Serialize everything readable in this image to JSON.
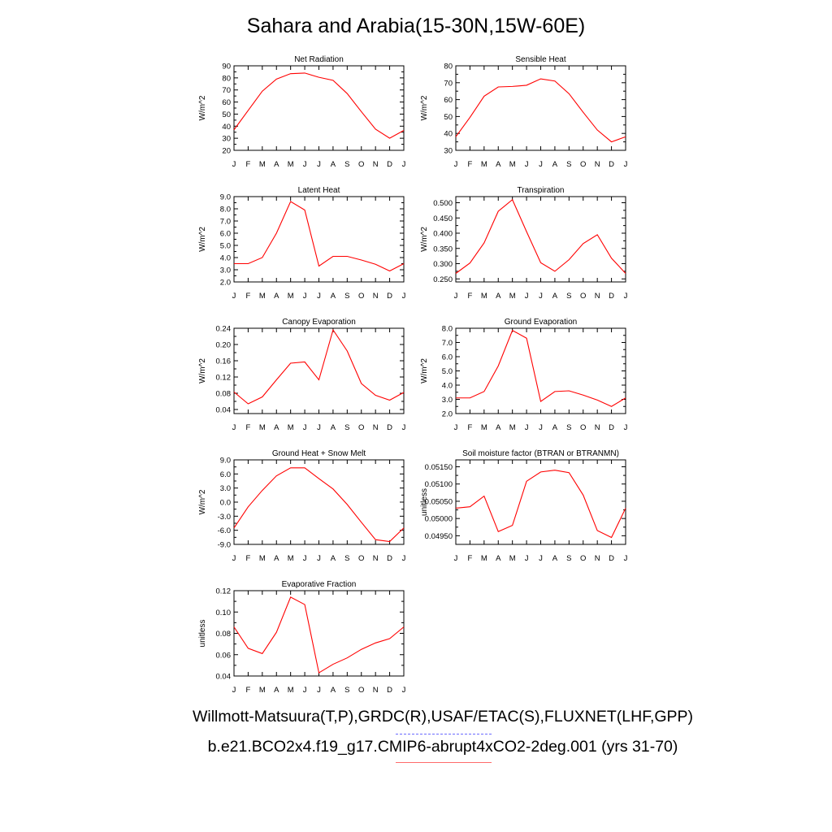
{
  "title": "Sahara and Arabia(15-30N,15W-60E)",
  "months": [
    "J",
    "F",
    "M",
    "A",
    "M",
    "J",
    "J",
    "A",
    "S",
    "O",
    "N",
    "D",
    "J"
  ],
  "legend": {
    "line1": "Willmott-Matsuura(T,P),GRDC(R),USAF/ETAC(S),FLUXNET(LHF,GPP)",
    "line1_color": "#6b6bff",
    "line2": "b.e21.BCO2x4.f19_g17.CMIP6-abrupt4xCO2-2deg.001 (yrs 31-70)",
    "line2_color": "#ff6b6b"
  },
  "chart_data": [
    {
      "type": "line",
      "title": "Net Radiation",
      "ylabel": "W/m^2",
      "ylim": [
        20,
        90
      ],
      "yticks": [
        "20",
        "30",
        "40",
        "50",
        "60",
        "70",
        "80",
        "90"
      ],
      "series": [
        {
          "color": "#ff0000",
          "values": [
            37,
            53,
            69,
            79,
            83.5,
            84,
            80.5,
            78,
            67,
            52,
            37.5,
            30,
            36.5
          ]
        }
      ]
    },
    {
      "type": "line",
      "title": "Sensible Heat",
      "ylabel": "W/m^2",
      "ylim": [
        30,
        80
      ],
      "yticks": [
        "30",
        "40",
        "50",
        "60",
        "70",
        "80"
      ],
      "series": [
        {
          "color": "#ff0000",
          "values": [
            38,
            49.5,
            62,
            67.5,
            67.8,
            68.5,
            72.3,
            71,
            63.5,
            52.5,
            42,
            35,
            38
          ]
        }
      ]
    },
    {
      "type": "line",
      "title": "Latent Heat",
      "ylabel": "W/m^2",
      "ylim": [
        2.0,
        9.0
      ],
      "yticks": [
        "2.0",
        "3.0",
        "4.0",
        "5.0",
        "6.0",
        "7.0",
        "8.0",
        "9.0"
      ],
      "series": [
        {
          "color": "#ff0000",
          "values": [
            3.5,
            3.5,
            4.0,
            6.0,
            8.6,
            7.9,
            3.3,
            4.1,
            4.1,
            3.8,
            3.45,
            2.9,
            3.5
          ]
        }
      ]
    },
    {
      "type": "line",
      "title": "Transpiration",
      "ylabel": "W/m^2",
      "ylim": [
        0.24,
        0.52
      ],
      "yticks": [
        "0.250",
        "0.300",
        "0.350",
        "0.400",
        "0.450",
        "0.500"
      ],
      "ytick_values": [
        0.25,
        0.3,
        0.35,
        0.4,
        0.45,
        0.5
      ],
      "series": [
        {
          "color": "#ff0000",
          "values": [
            0.268,
            0.302,
            0.368,
            0.472,
            0.51,
            0.405,
            0.303,
            0.275,
            0.313,
            0.366,
            0.395,
            0.318,
            0.268
          ]
        }
      ]
    },
    {
      "type": "line",
      "title": "Canopy Evaporation",
      "ylabel": "W/m^2",
      "ylim": [
        0.03,
        0.24
      ],
      "yticks": [
        "0.04",
        "0.08",
        "0.12",
        "0.16",
        "0.20",
        "0.24"
      ],
      "ytick_values": [
        0.04,
        0.08,
        0.12,
        0.16,
        0.2,
        0.24
      ],
      "series": [
        {
          "color": "#ff0000",
          "values": [
            0.083,
            0.054,
            0.071,
            0.113,
            0.154,
            0.157,
            0.113,
            0.236,
            0.184,
            0.104,
            0.075,
            0.063,
            0.082
          ]
        }
      ]
    },
    {
      "type": "line",
      "title": "Ground Evaporation",
      "ylabel": "W/m^2",
      "ylim": [
        2.0,
        8.0
      ],
      "yticks": [
        "2.0",
        "3.0",
        "4.0",
        "5.0",
        "6.0",
        "7.0",
        "8.0"
      ],
      "series": [
        {
          "color": "#ff0000",
          "values": [
            3.1,
            3.1,
            3.55,
            5.35,
            7.85,
            7.3,
            2.85,
            3.55,
            3.6,
            3.3,
            2.95,
            2.5,
            3.1
          ]
        }
      ]
    },
    {
      "type": "line",
      "title": "Ground Heat + Snow Melt",
      "ylabel": "W/m^2",
      "ylim": [
        -9.0,
        9.0
      ],
      "yticks": [
        "-9.0",
        "-6.0",
        "-3.0",
        "0.0",
        "3.0",
        "6.0",
        "9.0"
      ],
      "series": [
        {
          "color": "#ff0000",
          "values": [
            -5.5,
            -1.0,
            2.5,
            5.6,
            7.3,
            7.3,
            5.0,
            2.8,
            -0.5,
            -4.3,
            -8.0,
            -8.4,
            -5.5
          ]
        }
      ]
    },
    {
      "type": "line",
      "title": "Soil moisture factor (BTRAN or BTRANMN)",
      "ylabel": "unitless",
      "ylim": [
        0.04925,
        0.0517
      ],
      "yticks": [
        "0.04950",
        "0.05000",
        "0.05050",
        "0.05100",
        "0.05150"
      ],
      "ytick_values": [
        0.0495,
        0.05,
        0.0505,
        0.051,
        0.0515
      ],
      "series": [
        {
          "color": "#ff0000",
          "values": [
            0.0503,
            0.05034,
            0.05065,
            0.04962,
            0.0498,
            0.05108,
            0.05135,
            0.0514,
            0.05133,
            0.05068,
            0.04965,
            0.04945,
            0.0503
          ]
        }
      ]
    },
    {
      "type": "line",
      "title": "Evaporative Fraction",
      "ylabel": "unitless",
      "ylim": [
        0.04,
        0.12
      ],
      "yticks": [
        "0.04",
        "0.06",
        "0.08",
        "0.10",
        "0.12"
      ],
      "ytick_values": [
        0.04,
        0.06,
        0.08,
        0.1,
        0.12
      ],
      "series": [
        {
          "color": "#ff0000",
          "values": [
            0.086,
            0.066,
            0.061,
            0.081,
            0.114,
            0.107,
            0.043,
            0.051,
            0.057,
            0.065,
            0.071,
            0.075,
            0.086
          ]
        }
      ]
    }
  ]
}
